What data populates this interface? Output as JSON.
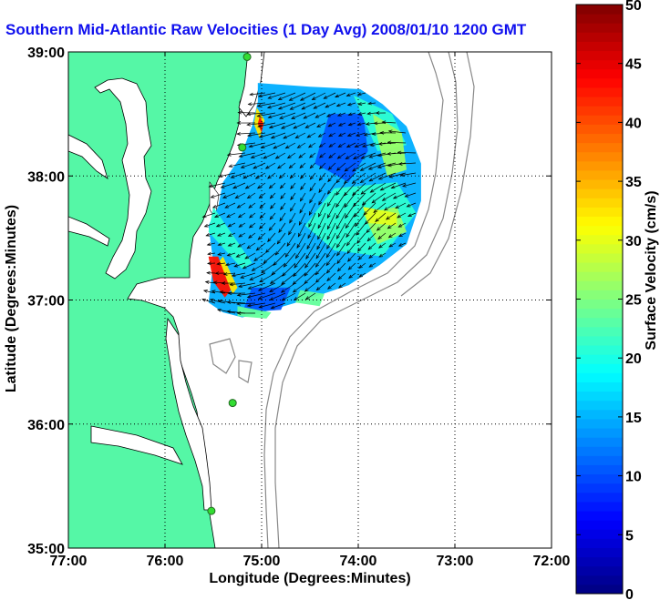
{
  "chart_data": {
    "type": "heatmap",
    "title": "Southern Mid-Atlantic Raw Velocities (1 Day Avg) 2008/01/10 1200 GMT",
    "xlabel": "Longitude (Degrees:Minutes)",
    "ylabel": "Latitude (Degrees:Minutes)",
    "xlim": [
      -77,
      -72
    ],
    "ylim": [
      35,
      39
    ],
    "xticks": [
      -77,
      -76,
      -75,
      -74,
      -73,
      -72
    ],
    "xtick_labels": [
      "77:00",
      "76:00",
      "75:00",
      "74:00",
      "73:00",
      "72:00"
    ],
    "yticks": [
      35,
      36,
      37,
      38,
      39
    ],
    "ytick_labels": [
      "35:00",
      "36:00",
      "37:00",
      "38:00",
      "39:00"
    ],
    "grid": true,
    "colorbar": {
      "label": "Surface Velocity (cm/s)",
      "range": [
        0,
        50
      ],
      "ticks": [
        0,
        5,
        10,
        15,
        20,
        25,
        30,
        35,
        40,
        45,
        50
      ],
      "colormap": "jet"
    },
    "regions": [
      {
        "speed": 10,
        "polygon": [
          [
            -75.04,
            38.75
          ],
          [
            -74.5,
            38.72
          ],
          [
            -73.98,
            38.7
          ],
          [
            -73.75,
            38.58
          ],
          [
            -73.5,
            38.4
          ],
          [
            -73.35,
            38.1
          ],
          [
            -73.35,
            37.8
          ],
          [
            -73.5,
            37.45
          ],
          [
            -73.78,
            37.28
          ],
          [
            -74.1,
            37.12
          ],
          [
            -74.55,
            37.0
          ],
          [
            -74.9,
            36.92
          ],
          [
            -75.2,
            36.86
          ],
          [
            -75.4,
            36.9
          ],
          [
            -75.55,
            36.98
          ],
          [
            -75.5,
            37.3
          ],
          [
            -75.55,
            37.6
          ],
          [
            -75.45,
            37.75
          ],
          [
            -75.4,
            37.95
          ],
          [
            -75.22,
            38.15
          ],
          [
            -75.1,
            38.4
          ],
          [
            -75.04,
            38.6
          ]
        ]
      },
      {
        "speed": 5,
        "polygon": [
          [
            -74.3,
            38.5
          ],
          [
            -73.95,
            38.5
          ],
          [
            -73.9,
            38.2
          ],
          [
            -74.1,
            37.95
          ],
          [
            -74.45,
            38.1
          ]
        ]
      },
      {
        "speed": 5,
        "polygon": [
          [
            -75.1,
            37.1
          ],
          [
            -74.7,
            37.1
          ],
          [
            -74.8,
            36.92
          ],
          [
            -75.2,
            36.9
          ]
        ]
      },
      {
        "speed": 17,
        "polygon": [
          [
            -74.25,
            37.9
          ],
          [
            -73.6,
            37.95
          ],
          [
            -73.4,
            37.7
          ],
          [
            -73.75,
            37.35
          ],
          [
            -74.25,
            37.4
          ],
          [
            -74.55,
            37.6
          ]
        ]
      },
      {
        "speed": 17,
        "polygon": [
          [
            -74.05,
            38.65
          ],
          [
            -73.65,
            38.5
          ],
          [
            -73.5,
            38.25
          ],
          [
            -73.8,
            38.2
          ]
        ]
      },
      {
        "speed": 17,
        "polygon": [
          [
            -75.55,
            37.55
          ],
          [
            -75.2,
            37.25
          ],
          [
            -75.1,
            37.3
          ],
          [
            -75.5,
            37.75
          ]
        ]
      },
      {
        "speed": 23,
        "polygon": [
          [
            -73.85,
            38.5
          ],
          [
            -73.55,
            38.35
          ],
          [
            -73.5,
            38.05
          ],
          [
            -73.7,
            38.0
          ],
          [
            -73.8,
            38.3
          ]
        ]
      },
      {
        "speed": 23,
        "polygon": [
          [
            -73.95,
            37.7
          ],
          [
            -73.6,
            37.75
          ],
          [
            -73.5,
            37.55
          ],
          [
            -73.8,
            37.45
          ]
        ]
      },
      {
        "speed": 27,
        "polygon": [
          [
            -73.95,
            37.75
          ],
          [
            -73.6,
            37.7
          ],
          [
            -73.6,
            37.6
          ],
          [
            -73.9,
            37.62
          ]
        ]
      },
      {
        "speed": 30,
        "polygon": [
          [
            -75.45,
            37.3
          ],
          [
            -75.3,
            37.05
          ],
          [
            -75.25,
            37.1
          ],
          [
            -75.4,
            37.35
          ]
        ]
      },
      {
        "speed": 30,
        "polygon": [
          [
            -75.05,
            38.55
          ],
          [
            -74.97,
            38.45
          ],
          [
            -75.02,
            38.3
          ],
          [
            -75.08,
            38.42
          ]
        ]
      },
      {
        "speed": 20,
        "polygon": [
          [
            -74.6,
            37.08
          ],
          [
            -74.35,
            37.05
          ],
          [
            -74.4,
            36.95
          ],
          [
            -74.65,
            36.98
          ]
        ]
      },
      {
        "speed": 20,
        "polygon": [
          [
            -75.25,
            36.95
          ],
          [
            -74.9,
            36.9
          ],
          [
            -74.95,
            36.85
          ],
          [
            -75.25,
            36.87
          ]
        ]
      },
      {
        "speed": 42,
        "polygon": [
          [
            -75.55,
            37.35
          ],
          [
            -75.45,
            37.35
          ],
          [
            -75.32,
            37.08
          ],
          [
            -75.38,
            37.02
          ],
          [
            -75.5,
            37.15
          ]
        ]
      },
      {
        "speed": 42,
        "polygon": [
          [
            -75.02,
            38.48
          ],
          [
            -74.98,
            38.42
          ],
          [
            -75.0,
            38.35
          ],
          [
            -75.04,
            38.42
          ]
        ]
      }
    ],
    "flow": {
      "base_direction_deg": 200,
      "typical_speed_cm_s": 10
    },
    "stations": [
      [
        -75.15,
        38.96
      ],
      [
        -75.2,
        38.23
      ],
      [
        -75.3,
        36.17
      ],
      [
        -75.52,
        35.3
      ]
    ]
  }
}
